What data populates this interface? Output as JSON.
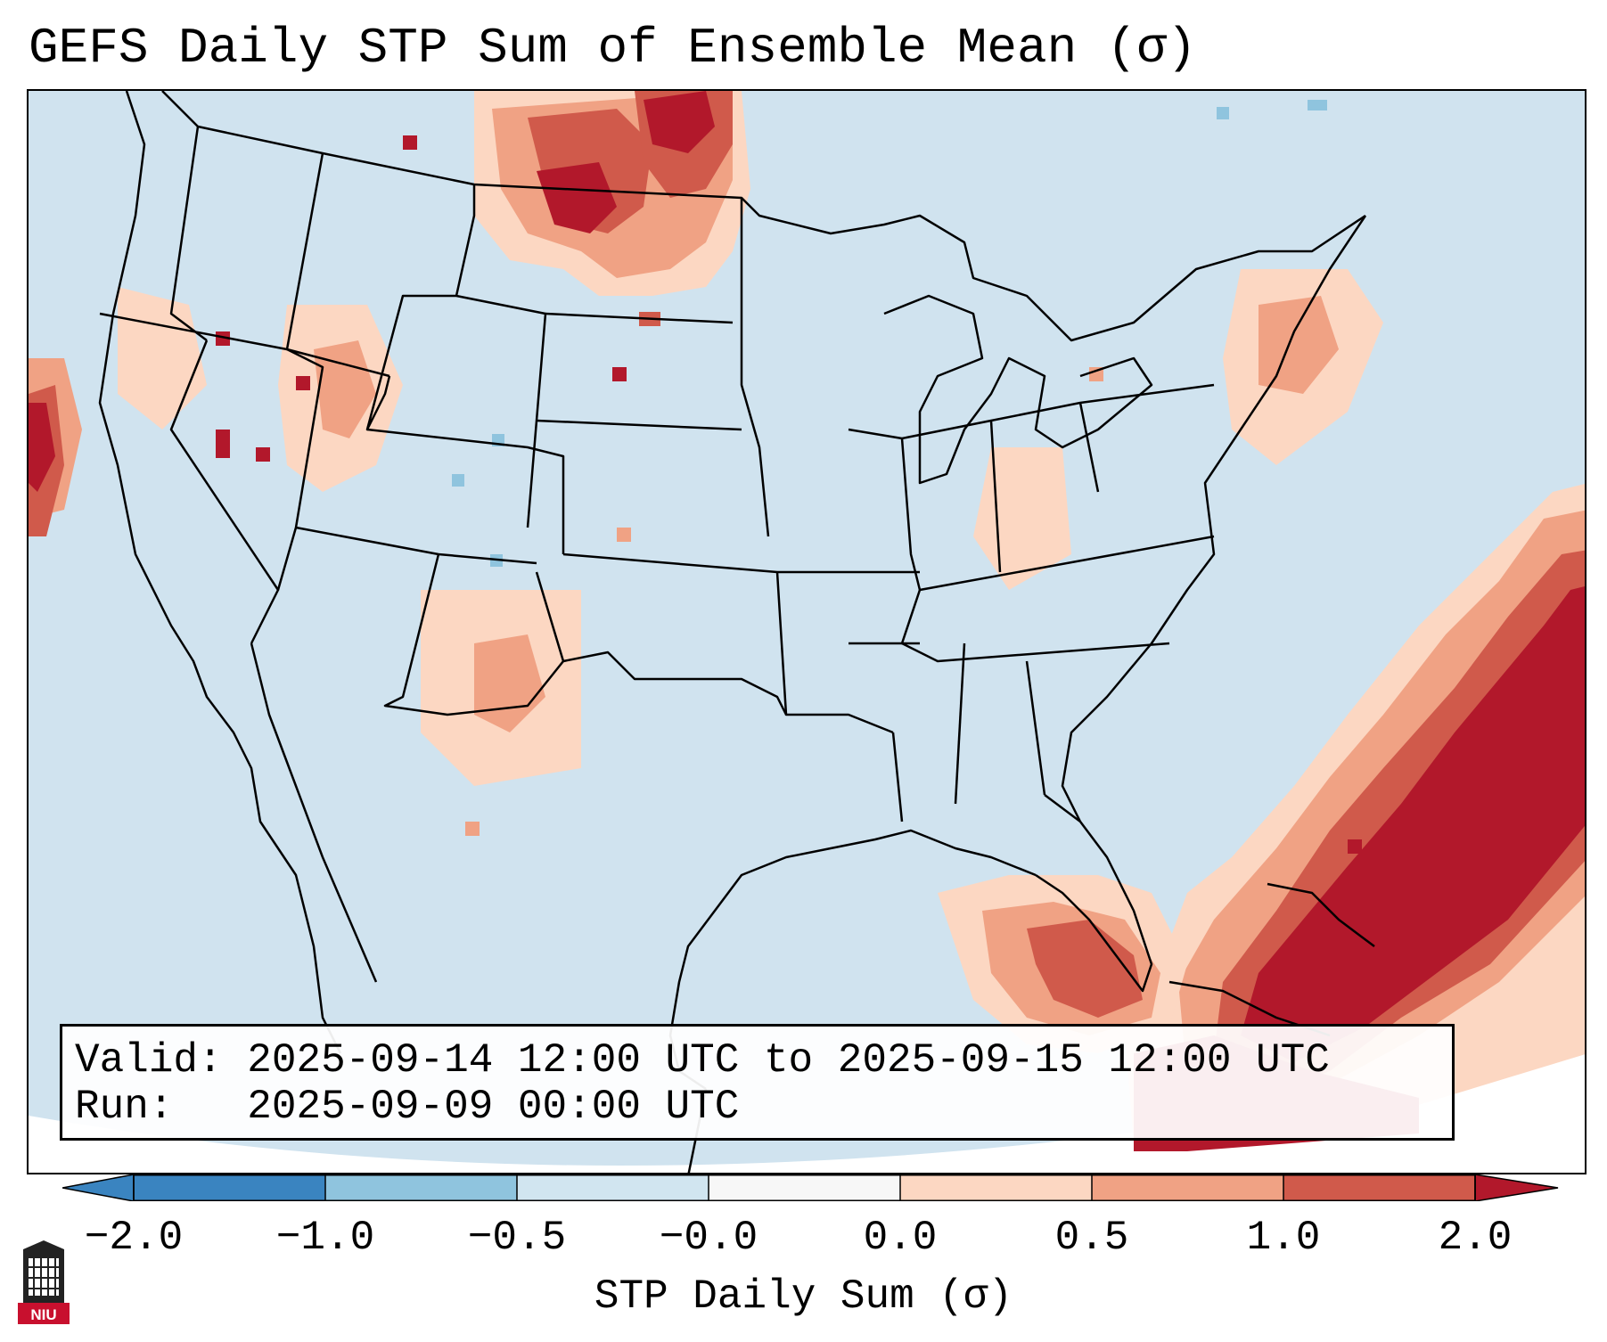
{
  "title": "GEFS Daily STP Sum of Ensemble Mean (σ)",
  "info": {
    "valid_label": "Valid:",
    "valid_value": "2025-09-14 12:00 UTC to 2025-09-15 12:00 UTC",
    "run_label": "Run:",
    "run_value": "2025-09-09 00:00 UTC"
  },
  "colorbar": {
    "label": "STP Daily Sum (σ)",
    "ticks": [
      "−2.0",
      "−1.0",
      "−0.5",
      "−0.0",
      "0.0",
      "0.5",
      "1.0",
      "2.0"
    ],
    "colors": [
      "#3a84c0",
      "#8fc4de",
      "#d1e5f0",
      "#f7f7f7",
      "#fcd7c2",
      "#f0a284",
      "#d05a4b",
      "#b2182b"
    ],
    "extend": "both"
  },
  "colors": {
    "background_value": "#d0e3ef",
    "neutral": "#f7f7f7",
    "light_positive": "#fcd7c2",
    "medium_positive": "#f0a284",
    "strong_positive": "#d05a4b",
    "max_positive": "#b2182b",
    "light_negative": "#8fc4de"
  },
  "logo": {
    "text": "NIU"
  }
}
